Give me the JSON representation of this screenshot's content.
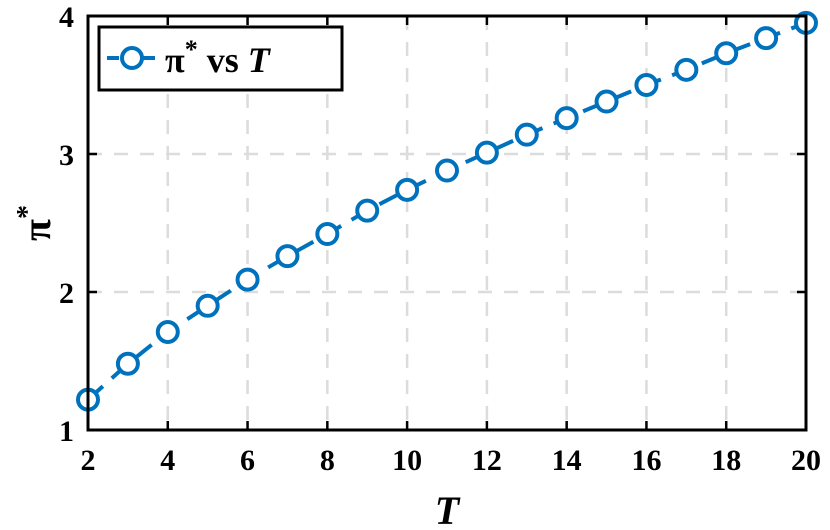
{
  "chart_data": {
    "type": "line",
    "title": "",
    "xlabel": "T",
    "ylabel": "π*",
    "xlim": [
      2,
      20
    ],
    "ylim": [
      1,
      4
    ],
    "xticks": [
      "2",
      "4",
      "6",
      "8",
      "10",
      "12",
      "14",
      "16",
      "18",
      "20"
    ],
    "yticks": [
      "1",
      "2",
      "3",
      "4"
    ],
    "grid": true,
    "legend_position": "top-left",
    "series": [
      {
        "name": "π* vs T",
        "color": "#0072BD",
        "marker": "circle",
        "line_style": "dashed",
        "x": [
          2,
          3,
          4,
          5,
          6,
          7,
          8,
          9,
          10,
          11,
          12,
          13,
          14,
          15,
          16,
          17,
          18,
          19,
          20
        ],
        "y": [
          1.22,
          1.48,
          1.71,
          1.9,
          2.09,
          2.26,
          2.42,
          2.59,
          2.74,
          2.88,
          3.01,
          3.14,
          3.26,
          3.38,
          3.5,
          3.61,
          3.73,
          3.84,
          3.95
        ]
      }
    ],
    "legend": {
      "label_main": "π",
      "label_sup": "*",
      "label_mid": " vs ",
      "label_var": "T"
    }
  }
}
